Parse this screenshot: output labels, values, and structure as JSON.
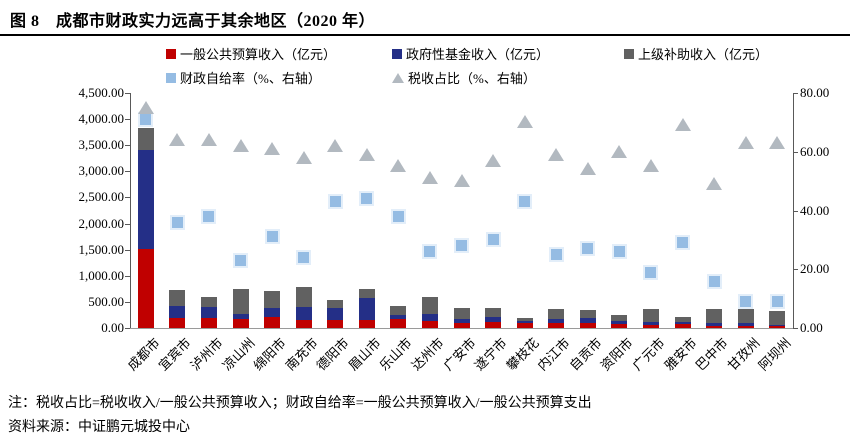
{
  "figure": {
    "title": "图 8　成都市财政实力远高于其余地区（2020 年）",
    "note": "注：税收占比=税收收入/一般公共预算收入；财政自给率=一般公共预算收入/一般公共预算支出",
    "source": "资料来源：中证鹏元城投中心"
  },
  "colors": {
    "general_budget_red": "#C00000",
    "gov_fund_navy": "#242F87",
    "subsidy_gray": "#616161",
    "self_sufficiency_blue": "#95BCE3",
    "tax_ratio_gray": "#B2B9C0"
  },
  "chart_data": {
    "type": "bar",
    "subtype": "stacked-bar-with-scatter-markers",
    "categories": [
      "成都市",
      "宜宾市",
      "泸州市",
      "凉山州",
      "绵阳市",
      "南充市",
      "德阳市",
      "眉山市",
      "乐山市",
      "达州市",
      "广安市",
      "遂宁市",
      "攀枝花",
      "内江市",
      "自贡市",
      "资阳市",
      "广元市",
      "雅安市",
      "巴中市",
      "甘孜州",
      "阿坝州"
    ],
    "series": [
      {
        "name": "一般公共预算收入（亿元）",
        "render": "bar-stack",
        "axis": "left",
        "color": "#C00000",
        "values": [
          1520,
          185,
          195,
          165,
          205,
          155,
          150,
          150,
          165,
          140,
          90,
          110,
          90,
          90,
          100,
          75,
          55,
          70,
          45,
          45,
          30
        ]
      },
      {
        "name": "政府性基金收入（亿元）",
        "render": "bar-stack",
        "axis": "left",
        "color": "#242F87",
        "values": [
          1890,
          235,
          210,
          100,
          170,
          240,
          230,
          415,
          80,
          130,
          75,
          95,
          40,
          80,
          90,
          65,
          60,
          40,
          55,
          50,
          25
        ]
      },
      {
        "name": "上级补助收入（亿元）",
        "render": "bar-stack",
        "axis": "left",
        "color": "#616161",
        "values": [
          415,
          305,
          180,
          480,
          340,
          385,
          155,
          180,
          180,
          320,
          210,
          170,
          70,
          185,
          155,
          110,
          245,
          95,
          260,
          275,
          275
        ]
      },
      {
        "name": "财政自给率（%、右轴）",
        "render": "scatter-square",
        "axis": "right",
        "color": "#95BCE3",
        "values": [
          71,
          36,
          38,
          23,
          31,
          24,
          43,
          44,
          38,
          26,
          28,
          30,
          43,
          25,
          27,
          26,
          19,
          29,
          16,
          9,
          9
        ]
      },
      {
        "name": "税收占比（%、右轴）",
        "render": "scatter-triangle",
        "axis": "right",
        "color": "#B2B9C0",
        "values": [
          75,
          64,
          64,
          62,
          61,
          58,
          62,
          59,
          55,
          51,
          50,
          57,
          70,
          59,
          54,
          60,
          55,
          69,
          49,
          63,
          63
        ]
      }
    ],
    "left_axis": {
      "min": 0,
      "max": 4500,
      "step": 500,
      "tick_labels": [
        "0.00",
        "500.00",
        "1,000.00",
        "1,500.00",
        "2,000.00",
        "2,500.00",
        "3,000.00",
        "3,500.00",
        "4,000.00",
        "4,500.00"
      ]
    },
    "right_axis": {
      "min": 0,
      "max": 80,
      "step": 20,
      "tick_labels": [
        "0.00",
        "20.00",
        "40.00",
        "60.00",
        "80.00"
      ]
    },
    "grid": false,
    "legend_position": "top"
  }
}
